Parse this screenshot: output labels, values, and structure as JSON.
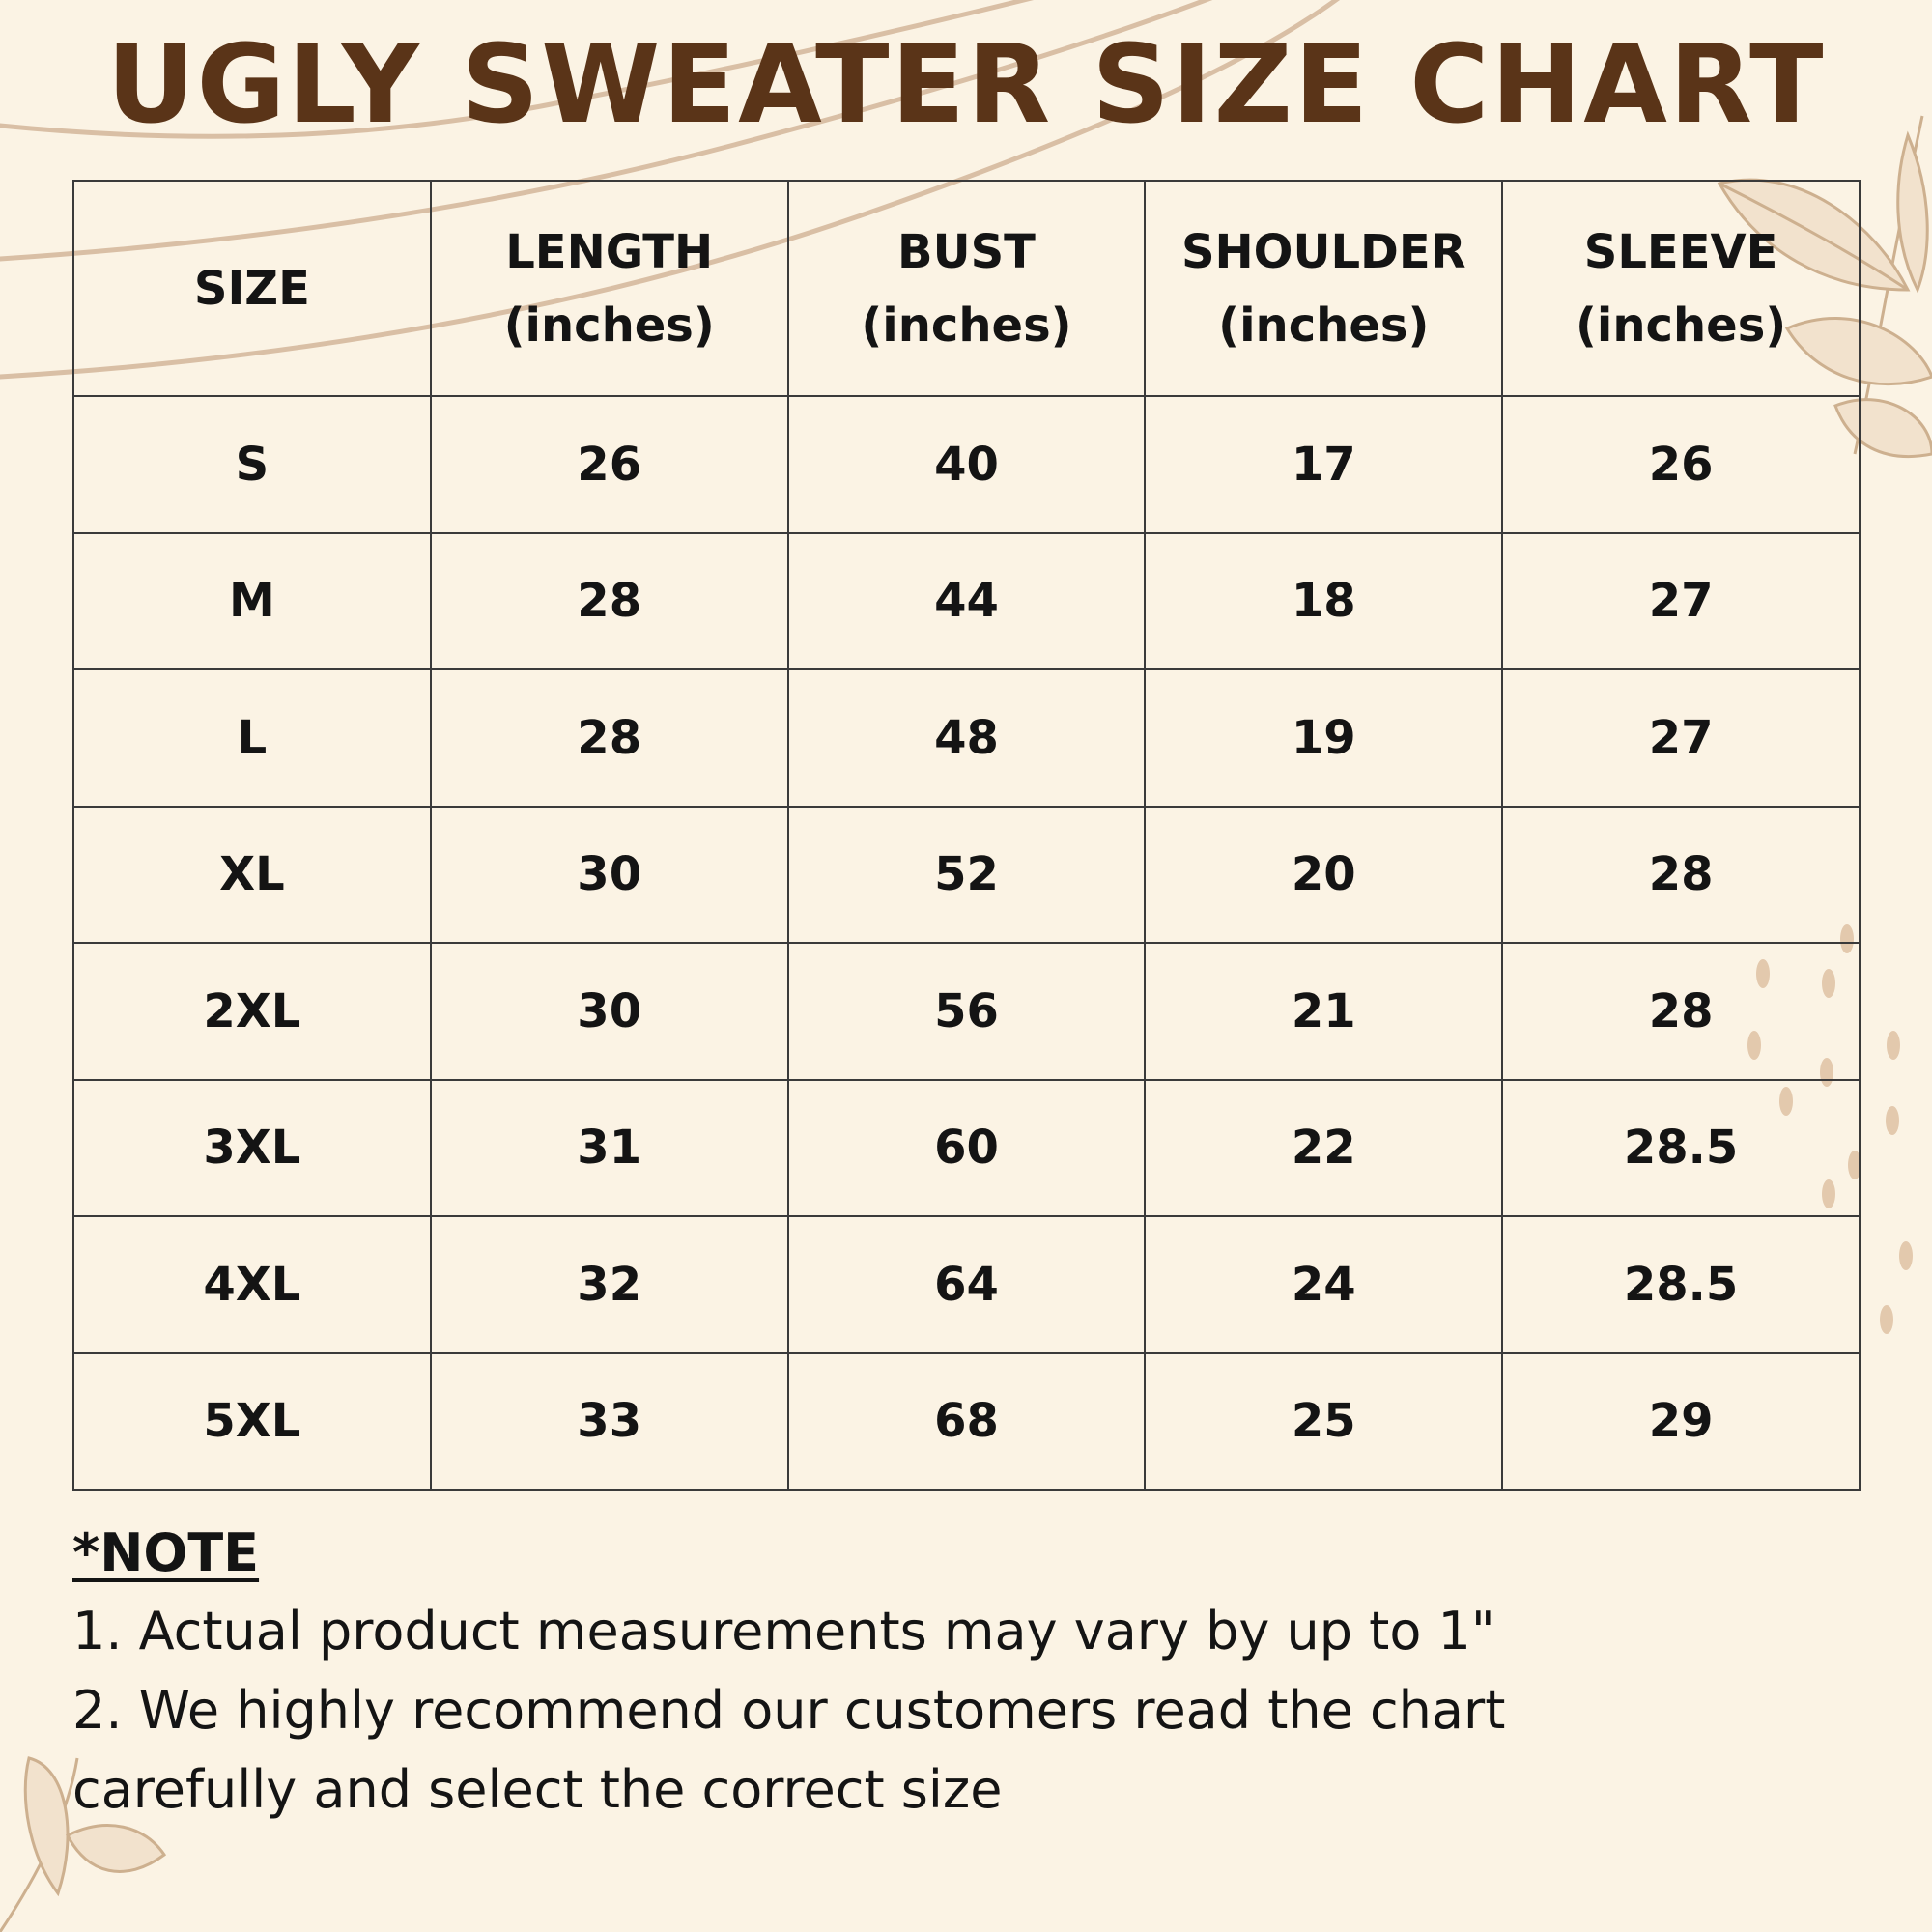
{
  "title": "UGLY SWEATER SIZE CHART",
  "colors": {
    "background": "#fbf3e4",
    "title": "#5a3418",
    "decoration": "#d9bfa5",
    "text": "#141414"
  },
  "table": {
    "headers": [
      {
        "name": "SIZE",
        "unit": ""
      },
      {
        "name": "LENGTH",
        "unit": "(inches)"
      },
      {
        "name": "BUST",
        "unit": "(inches)"
      },
      {
        "name": "SHOULDER",
        "unit": "(inches)"
      },
      {
        "name": "SLEEVE",
        "unit": "(inches)"
      }
    ],
    "rows": [
      [
        "S",
        "26",
        "40",
        "17",
        "26"
      ],
      [
        "M",
        "28",
        "44",
        "18",
        "27"
      ],
      [
        "L",
        "28",
        "48",
        "19",
        "27"
      ],
      [
        "XL",
        "30",
        "52",
        "20",
        "28"
      ],
      [
        "2XL",
        "30",
        "56",
        "21",
        "28"
      ],
      [
        "3XL",
        "31",
        "60",
        "22",
        "28.5"
      ],
      [
        "4XL",
        "32",
        "64",
        "24",
        "28.5"
      ],
      [
        "5XL",
        "33",
        "68",
        "25",
        "29"
      ]
    ]
  },
  "note": {
    "heading": "*NOTE",
    "lines": [
      "1. Actual product measurements may vary by up to 1\"",
      "2. We highly recommend our customers read the chart",
      "carefully and select the correct size"
    ]
  }
}
